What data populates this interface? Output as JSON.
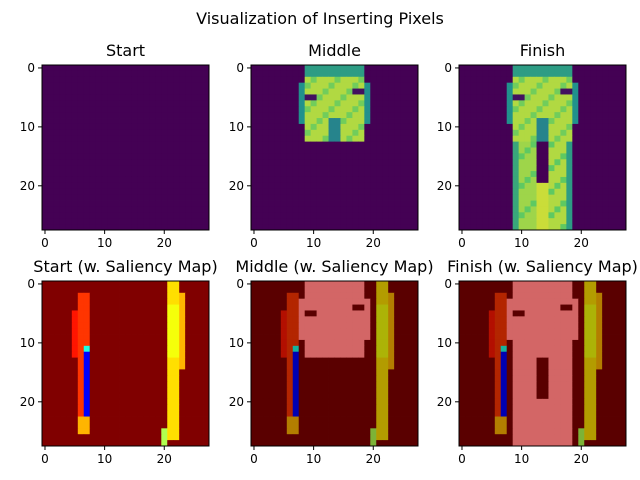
{
  "figure": {
    "title": "Visualization of Inserting Pixels"
  },
  "chart_data": [
    {
      "type": "heatmap",
      "title": "Start",
      "image": "start",
      "grid_size": [
        28,
        28
      ],
      "xticks": [
        0,
        10,
        20
      ],
      "yticks": [
        0,
        10,
        20
      ]
    },
    {
      "type": "heatmap",
      "title": "Middle",
      "image": "middle",
      "grid_size": [
        28,
        28
      ],
      "xticks": [
        0,
        10,
        20
      ],
      "yticks": [
        0,
        10,
        20
      ]
    },
    {
      "type": "heatmap",
      "title": "Finish",
      "image": "finish",
      "grid_size": [
        28,
        28
      ],
      "xticks": [
        0,
        10,
        20
      ],
      "yticks": [
        0,
        10,
        20
      ]
    },
    {
      "type": "heatmap",
      "title": "Start (w. Saliency Map)",
      "image": "start",
      "overlay": "saliency",
      "grid_size": [
        28,
        28
      ],
      "xticks": [
        0,
        10,
        20
      ],
      "yticks": [
        0,
        10,
        20
      ]
    },
    {
      "type": "heatmap",
      "title": "Middle (w. Saliency Map)",
      "image": "middle",
      "overlay": "saliency",
      "grid_size": [
        28,
        28
      ],
      "xticks": [
        0,
        10,
        20
      ],
      "yticks": [
        0,
        10,
        20
      ]
    },
    {
      "type": "heatmap",
      "title": "Finish (w. Saliency Map)",
      "image": "finish",
      "overlay": "saliency",
      "grid_size": [
        28,
        28
      ],
      "xticks": [
        0,
        10,
        20
      ],
      "yticks": [
        0,
        10,
        20
      ]
    }
  ],
  "colors": {
    "viridis_low": "#440154",
    "viridis_high": "#fde725",
    "saliency_background": "#800000"
  }
}
